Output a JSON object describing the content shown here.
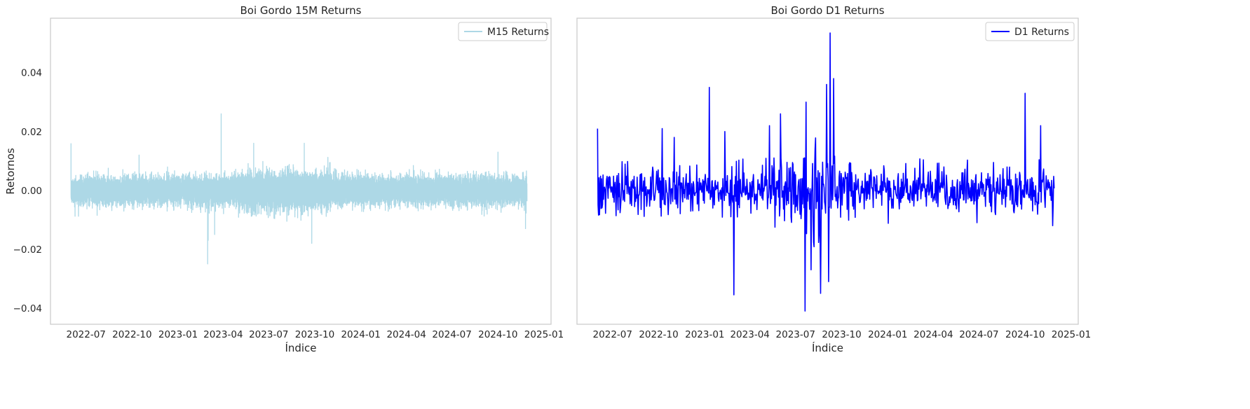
{
  "chart_data": [
    {
      "type": "line",
      "title": "Boi Gordo 15M Returns",
      "xlabel": "Índice",
      "ylabel": "Retornos",
      "xlim": [
        "2022-04-21",
        "2025-01-15"
      ],
      "ylim": [
        -0.0455,
        0.0585
      ],
      "x_ticks": [
        "2022-07",
        "2022-10",
        "2023-01",
        "2023-04",
        "2023-07",
        "2023-10",
        "2024-01",
        "2024-04",
        "2024-07",
        "2024-10",
        "2025-01"
      ],
      "y_ticks": [
        -0.04,
        -0.02,
        0.0,
        0.02,
        0.04
      ],
      "y_tick_labels": [
        "−0.04",
        "−0.02",
        "0.00",
        "0.02",
        "0.04"
      ],
      "grid": false,
      "legend": "top-right",
      "color": "#add8e6",
      "series": [
        {
          "name": "M15 Returns",
          "x_range": [
            "2022-06-01",
            "2024-11-28"
          ],
          "points_per_day": 24,
          "typical_amplitude": 0.004,
          "notable_points": [
            {
              "x": "2022-06-01",
              "y": 0.016
            },
            {
              "x": "2022-10-15",
              "y": 0.012
            },
            {
              "x": "2023-03-01",
              "y": -0.025
            },
            {
              "x": "2023-03-02",
              "y": -0.017
            },
            {
              "x": "2023-03-15",
              "y": -0.015
            },
            {
              "x": "2023-03-28",
              "y": 0.026
            },
            {
              "x": "2023-06-01",
              "y": 0.016
            },
            {
              "x": "2023-09-10",
              "y": 0.016
            },
            {
              "x": "2023-09-25",
              "y": -0.018
            },
            {
              "x": "2024-10-01",
              "y": 0.013
            },
            {
              "x": "2024-11-25",
              "y": -0.013
            }
          ]
        }
      ]
    },
    {
      "type": "line",
      "title": "Boi Gordo D1 Returns",
      "xlabel": "Índice",
      "ylabel": "",
      "xlim": [
        "2022-04-21",
        "2025-01-15"
      ],
      "ylim": [
        -0.0455,
        0.0585
      ],
      "x_ticks": [
        "2022-07",
        "2022-10",
        "2023-01",
        "2023-04",
        "2023-07",
        "2023-10",
        "2024-01",
        "2024-04",
        "2024-07",
        "2024-10",
        "2025-01"
      ],
      "y_ticks": [],
      "grid": false,
      "legend": "top-right",
      "color": "#0000ff",
      "series": [
        {
          "name": "D1 Returns",
          "x_range": [
            "2022-06-01",
            "2024-11-28"
          ],
          "points_per_day": 1,
          "typical_amplitude": 0.007,
          "notable_points": [
            {
              "x": "2022-06-01",
              "y": 0.021
            },
            {
              "x": "2022-10-08",
              "y": 0.021
            },
            {
              "x": "2022-11-01",
              "y": 0.018
            },
            {
              "x": "2023-01-10",
              "y": 0.035
            },
            {
              "x": "2023-02-10",
              "y": 0.02
            },
            {
              "x": "2023-02-28",
              "y": -0.0355
            },
            {
              "x": "2023-05-10",
              "y": 0.022
            },
            {
              "x": "2023-06-01",
              "y": 0.026
            },
            {
              "x": "2023-07-20",
              "y": -0.041
            },
            {
              "x": "2023-07-22",
              "y": 0.03
            },
            {
              "x": "2023-08-01",
              "y": -0.027
            },
            {
              "x": "2023-08-20",
              "y": -0.035
            },
            {
              "x": "2023-09-01",
              "y": 0.036
            },
            {
              "x": "2023-09-05",
              "y": -0.031
            },
            {
              "x": "2023-09-08",
              "y": 0.0535
            },
            {
              "x": "2023-09-15",
              "y": 0.038
            },
            {
              "x": "2024-10-01",
              "y": 0.033
            },
            {
              "x": "2024-11-01",
              "y": 0.022
            },
            {
              "x": "2024-11-25",
              "y": -0.012
            }
          ]
        }
      ]
    }
  ]
}
